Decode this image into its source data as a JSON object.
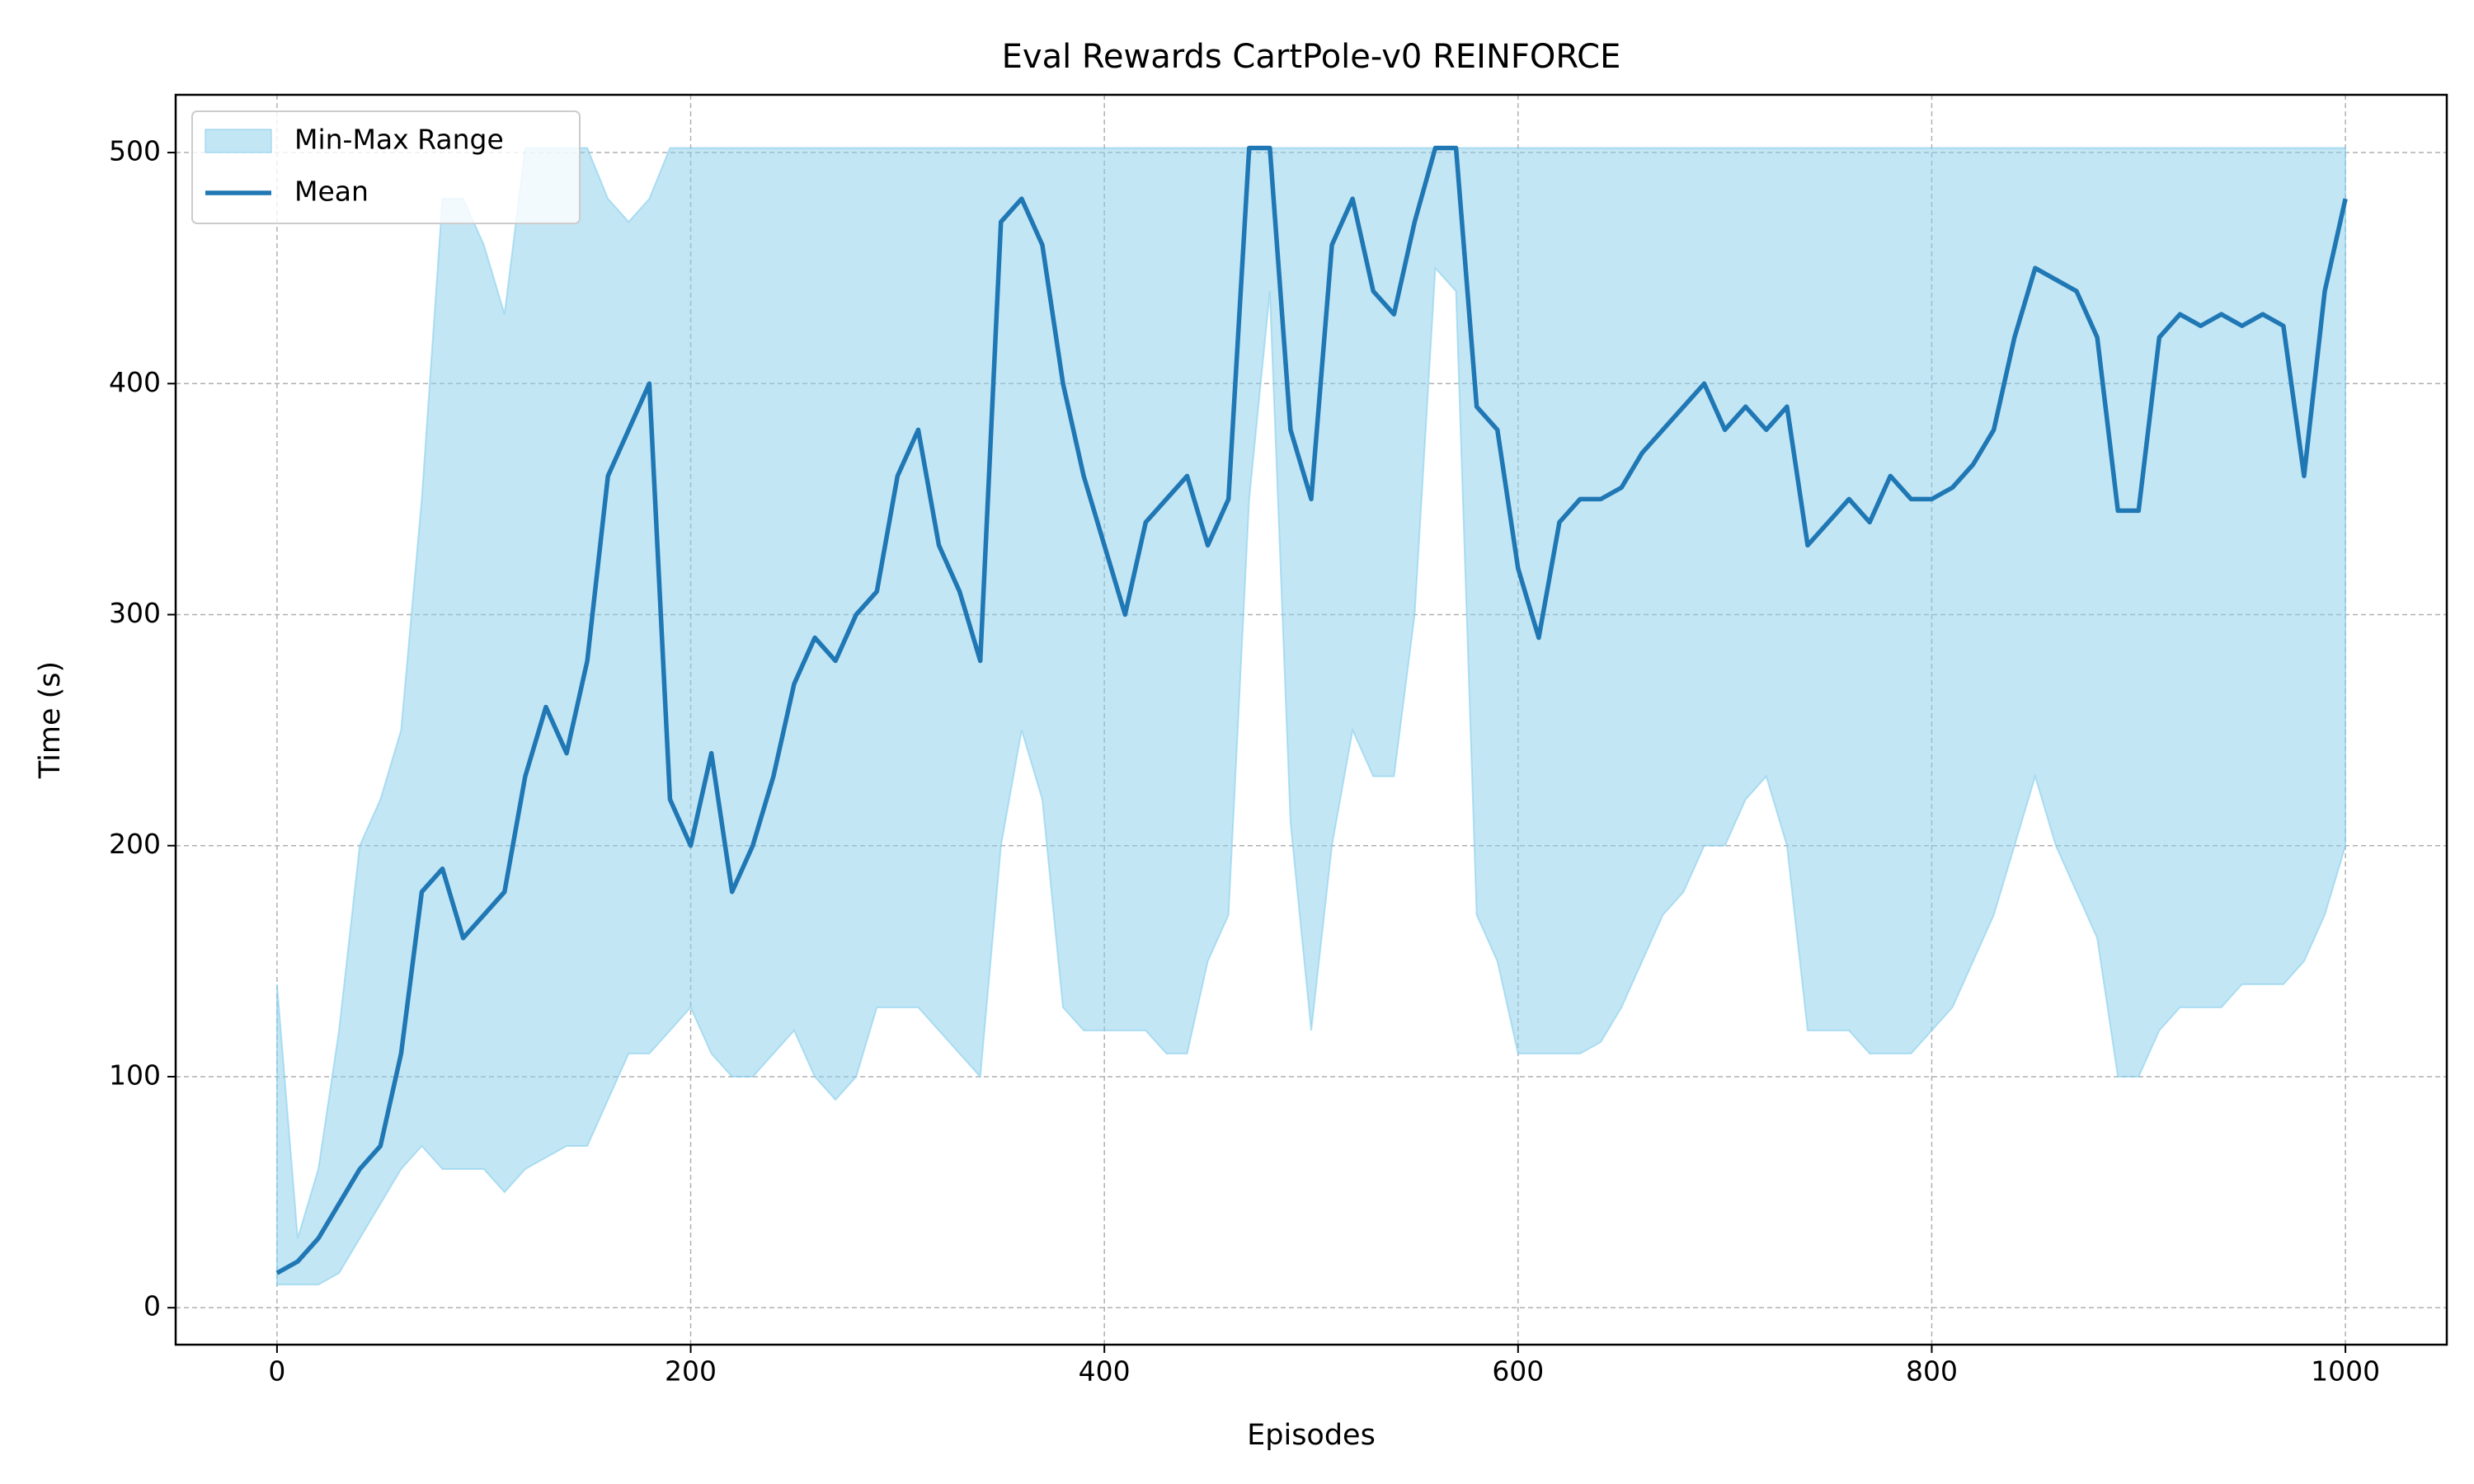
{
  "chart_data": {
    "type": "line",
    "title": "Eval Rewards CartPole-v0 REINFORCE",
    "x_label": "Episodes",
    "y_label": "Time (s)",
    "xlim": [
      -49,
      1049
    ],
    "ylim": [
      -16,
      525
    ],
    "xticks": [
      0,
      200,
      400,
      600,
      800,
      1000
    ],
    "yticks": [
      0,
      100,
      200,
      300,
      400,
      500
    ],
    "grid": true,
    "legend": "upper left",
    "x": [
      0,
      10,
      20,
      30,
      40,
      50,
      60,
      70,
      80,
      90,
      100,
      110,
      120,
      130,
      140,
      150,
      160,
      170,
      180,
      190,
      200,
      210,
      220,
      230,
      240,
      250,
      260,
      270,
      280,
      290,
      300,
      310,
      320,
      330,
      340,
      350,
      360,
      370,
      380,
      390,
      400,
      410,
      420,
      430,
      440,
      450,
      460,
      470,
      480,
      490,
      500,
      510,
      520,
      530,
      540,
      550,
      560,
      570,
      580,
      590,
      600,
      610,
      620,
      630,
      640,
      650,
      660,
      670,
      680,
      690,
      700,
      710,
      720,
      730,
      740,
      750,
      760,
      770,
      780,
      790,
      800,
      810,
      820,
      830,
      840,
      850,
      860,
      870,
      880,
      890,
      900,
      910,
      920,
      930,
      940,
      950,
      960,
      970,
      980,
      990,
      1000
    ],
    "series": [
      {
        "name": "Min-Max Range",
        "color": "#87ceeb",
        "min": [
          10,
          10,
          10,
          15,
          30,
          45,
          60,
          70,
          60,
          60,
          60,
          50,
          60,
          65,
          70,
          70,
          90,
          110,
          110,
          120,
          130,
          110,
          100,
          100,
          110,
          120,
          100,
          90,
          100,
          130,
          130,
          130,
          120,
          110,
          100,
          200,
          250,
          220,
          130,
          120,
          120,
          120,
          120,
          110,
          110,
          150,
          170,
          350,
          440,
          210,
          120,
          200,
          250,
          230,
          230,
          300,
          450,
          440,
          170,
          150,
          110,
          110,
          110,
          110,
          115,
          130,
          150,
          170,
          180,
          200,
          200,
          220,
          230,
          200,
          120,
          120,
          120,
          110,
          110,
          110,
          120,
          130,
          150,
          170,
          200,
          230,
          200,
          180,
          160,
          100,
          100,
          120,
          130,
          130,
          130,
          140,
          140,
          140,
          150,
          170,
          200
        ],
        "max": [
          140,
          30,
          60,
          120,
          200,
          220,
          250,
          350,
          480,
          480,
          460,
          430,
          502,
          502,
          502,
          502,
          480,
          470,
          480,
          502,
          502,
          502,
          502,
          502,
          502,
          502,
          502,
          502,
          502,
          502,
          502,
          502,
          502,
          502,
          502,
          502,
          502,
          502,
          502,
          502,
          502,
          502,
          502,
          502,
          502,
          502,
          502,
          502,
          502,
          502,
          502,
          502,
          502,
          502,
          502,
          502,
          502,
          502,
          502,
          502,
          502,
          502,
          502,
          502,
          502,
          502,
          502,
          502,
          502,
          502,
          502,
          502,
          502,
          502,
          502,
          502,
          502,
          502,
          502,
          502,
          502,
          502,
          502,
          502,
          502,
          502,
          502,
          502,
          502,
          502,
          502,
          502,
          502,
          502,
          502,
          502,
          502,
          502,
          502,
          502,
          502
        ]
      },
      {
        "name": "Mean",
        "color": "#1f77b4",
        "values": [
          15,
          20,
          30,
          45,
          60,
          70,
          110,
          180,
          190,
          160,
          170,
          180,
          230,
          260,
          240,
          280,
          360,
          380,
          400,
          220,
          200,
          240,
          180,
          200,
          230,
          270,
          290,
          280,
          300,
          310,
          360,
          380,
          330,
          310,
          280,
          470,
          480,
          460,
          400,
          360,
          330,
          300,
          340,
          350,
          360,
          330,
          350,
          502,
          502,
          380,
          350,
          460,
          480,
          440,
          430,
          470,
          502,
          502,
          390,
          380,
          320,
          290,
          340,
          350,
          350,
          355,
          370,
          380,
          390,
          400,
          380,
          390,
          380,
          390,
          330,
          340,
          350,
          340,
          360,
          350,
          350,
          355,
          365,
          380,
          420,
          450,
          445,
          440,
          420,
          345,
          345,
          420,
          430,
          425,
          430,
          425,
          430,
          425,
          360,
          440,
          480
        ]
      }
    ]
  }
}
